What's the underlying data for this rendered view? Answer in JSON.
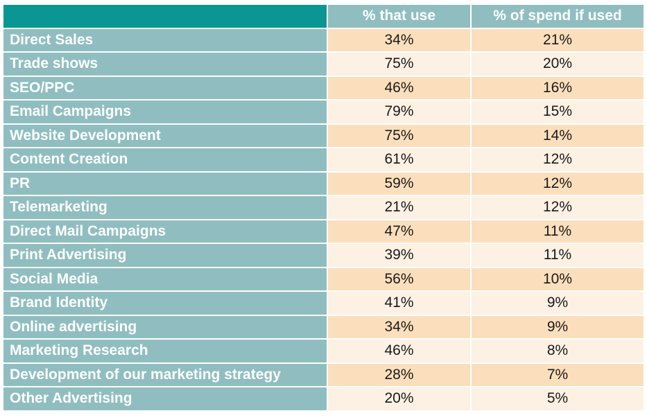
{
  "chart_data": {
    "type": "table",
    "columns": [
      "% that use",
      "% of spend if used"
    ],
    "rows": [
      {
        "label": "Direct Sales",
        "use": "34%",
        "spend": "21%"
      },
      {
        "label": "Trade shows",
        "use": "75%",
        "spend": "20%"
      },
      {
        "label": "SEO/PPC",
        "use": "46%",
        "spend": "16%"
      },
      {
        "label": "Email Campaigns",
        "use": "79%",
        "spend": "15%"
      },
      {
        "label": "Website Development",
        "use": "75%",
        "spend": "14%"
      },
      {
        "label": "Content Creation",
        "use": "61%",
        "spend": "12%"
      },
      {
        "label": "PR",
        "use": "59%",
        "spend": "12%"
      },
      {
        "label": "Telemarketing",
        "use": "21%",
        "spend": "12%"
      },
      {
        "label": "Direct Mail Campaigns",
        "use": "47%",
        "spend": "11%"
      },
      {
        "label": "Print Advertising",
        "use": "39%",
        "spend": "11%"
      },
      {
        "label": "Social Media",
        "use": "56%",
        "spend": "10%"
      },
      {
        "label": "Brand Identity",
        "use": "41%",
        "spend": "9%"
      },
      {
        "label": "Online advertising",
        "use": "34%",
        "spend": "9%"
      },
      {
        "label": "Marketing Research",
        "use": "46%",
        "spend": "8%"
      },
      {
        "label": "Development of our marketing strategy",
        "use": "28%",
        "spend": "7%"
      },
      {
        "label": "Other Advertising",
        "use": "20%",
        "spend": "5%"
      }
    ]
  },
  "colors": {
    "corner": "#0a9793",
    "header_and_labels": "#90bec0",
    "row_odd": "#fbdfbc",
    "row_even": "#fdf1e4"
  }
}
